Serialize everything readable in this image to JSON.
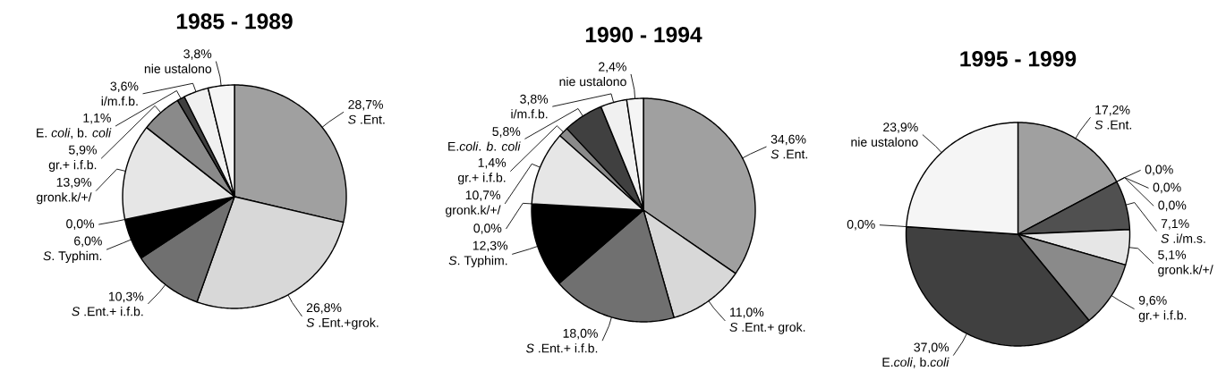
{
  "chart_data": [
    {
      "type": "pie",
      "title": "1985 - 1989",
      "categories": [
        "*S* .Ent.",
        "*S* .Ent.+grok.",
        "*S* .Ent.+ i.f.b.",
        "*S*. Typhim.",
        null,
        "gronk.k/+/",
        "gr.+ i.f.b.",
        "E. *coli*, b. *coli*",
        "i/m.f.b.",
        "nie ustalono"
      ],
      "values": [
        28.7,
        26.8,
        10.3,
        6.0,
        0.0,
        13.9,
        5.9,
        1.1,
        3.6,
        3.8
      ],
      "value_labels": [
        "28,7%",
        "26,8%",
        "10,3%",
        "6,0%",
        "0,0%",
        "13,9%",
        "5,9%",
        "1,1%",
        "3,6%",
        "3,8%"
      ],
      "colors": [
        "#a0a0a0",
        "#d8d8d8",
        "#707070",
        "#000000",
        "#ffffff",
        "#e6e6e6",
        "#8a8a8a",
        "#404040",
        "#f0f0f0",
        "#f5f5f5"
      ]
    },
    {
      "type": "pie",
      "title": "1990 - 1994",
      "categories": [
        "*S* .Ent.",
        "*S* .Ent.+ grok.",
        "*S* .Ent.+ i.f.b.",
        "*S*. Typhim.",
        null,
        "gronk.k/+/",
        "gr.+ i.f.b.",
        "E.*coli*. *b*. *coli*",
        "i/m.f.b.",
        "nie ustalono"
      ],
      "values": [
        34.6,
        11.0,
        18.0,
        12.3,
        0.0,
        10.7,
        1.4,
        5.8,
        3.8,
        2.4
      ],
      "value_labels": [
        "34,6%",
        "11,0%",
        "18,0%",
        "12,3%",
        "0,0%",
        "10,7%",
        "1,4%",
        "5,8%",
        "3,8%",
        "2,4%"
      ],
      "colors": [
        "#a0a0a0",
        "#d8d8d8",
        "#707070",
        "#000000",
        "#ffffff",
        "#e6e6e6",
        "#8a8a8a",
        "#404040",
        "#f0f0f0",
        "#f5f5f5"
      ]
    },
    {
      "type": "pie",
      "title": "1995 - 1999",
      "categories": [
        "*S* .Ent.",
        null,
        null,
        null,
        "*S* .i/m.s.",
        "gronk.k/+/",
        "gr.+ i.f.b.",
        "E.*coli*, b.*coli*",
        null,
        "nie ustalono"
      ],
      "values": [
        17.2,
        0.0,
        0.0,
        0.0,
        7.1,
        5.1,
        9.6,
        37.0,
        0.0,
        23.9
      ],
      "value_labels": [
        "17,2%",
        "0,0%",
        "0,0%",
        "0,0%",
        "7,1%",
        "5,1%",
        "9,6%",
        "37,0%",
        "0,0%",
        "23,9%"
      ],
      "colors": [
        "#a0a0a0",
        "#ffffff",
        "#ffffff",
        "#ffffff",
        "#505050",
        "#e6e6e6",
        "#8a8a8a",
        "#404040",
        "#ffffff",
        "#f5f5f5"
      ]
    }
  ]
}
